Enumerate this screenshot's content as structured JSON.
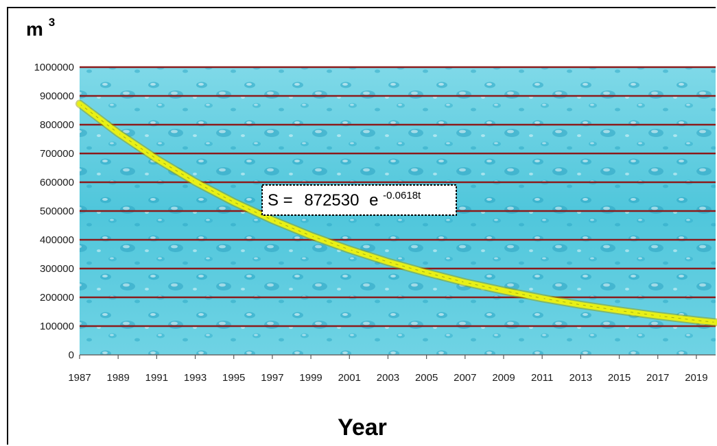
{
  "chart_data": {
    "type": "line",
    "y_unit_base": "m",
    "y_unit_exponent": "3",
    "xlabel": "Year",
    "ylim": [
      0,
      1000000
    ],
    "xlim": [
      1987,
      2020
    ],
    "y_ticks": [
      "0",
      "100000",
      "200000",
      "300000",
      "400000",
      "500000",
      "600000",
      "700000",
      "800000",
      "900000",
      "1000000"
    ],
    "x_ticks": [
      "1987",
      "1989",
      "1991",
      "1993",
      "1995",
      "1997",
      "1999",
      "2001",
      "2003",
      "2005",
      "2007",
      "2009",
      "2011",
      "2013",
      "2015",
      "2017",
      "2019"
    ],
    "grid": "horizontal",
    "annotation": {
      "prefix": "S =",
      "coefficient": "872530",
      "base": "e",
      "exponent": "-0.0618t"
    },
    "series": [
      {
        "color": "#e8f016",
        "x": [
          1987,
          1989,
          1991,
          1993,
          1995,
          1997,
          1999,
          2001,
          2003,
          2005,
          2007,
          2009,
          2011,
          2013,
          2015,
          2017,
          2019,
          2020
        ],
        "values": [
          872530,
          771000,
          681000,
          601000,
          531000,
          469000,
          414000,
          366000,
          323000,
          286000,
          252000,
          223000,
          197000,
          174000,
          154000,
          136000,
          120000,
          113000
        ]
      }
    ],
    "colors": {
      "background_water": "#5ecde0",
      "gridline": "#8b1a1a",
      "curve": "#e8f016"
    }
  }
}
